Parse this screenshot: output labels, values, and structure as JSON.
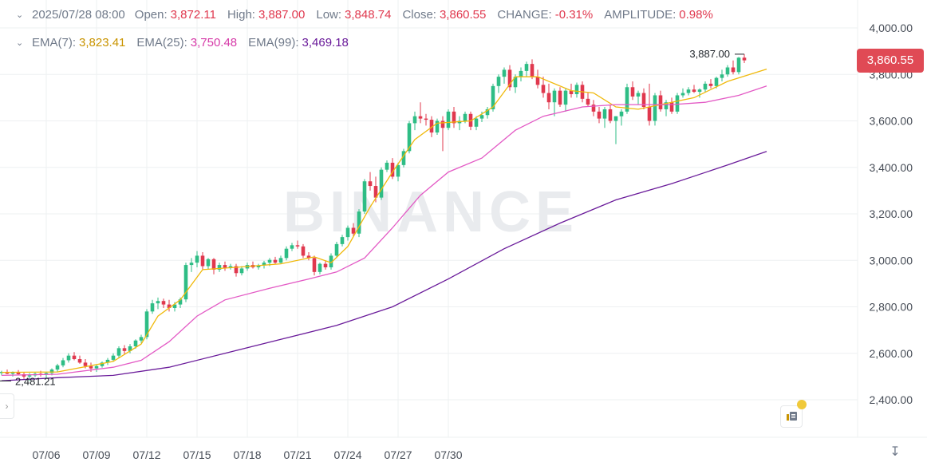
{
  "header": {
    "date": "2025/07/28 08:00",
    "open_label": "Open:",
    "open": "3,872.11",
    "high_label": "High:",
    "high": "3,887.00",
    "low_label": "Low:",
    "low": "3,848.74",
    "close_label": "Close:",
    "close": "3,860.55",
    "change_label": "CHANGE:",
    "change": "-0.31%",
    "amplitude_label": "AMPLITUDE:",
    "amplitude": "0.98%"
  },
  "ema": {
    "ema7_label": "EMA(7):",
    "ema7": "3,823.41",
    "ema25_label": "EMA(25):",
    "ema25": "3,750.48",
    "ema99_label": "EMA(99):",
    "ema99": "3,469.18"
  },
  "current_price": "3,860.55",
  "watermark": "BINANCE",
  "colors": {
    "up": "#2ebd85",
    "down": "#e0384e",
    "ema7": "#f0b90b",
    "ema25": "#e35ac5",
    "ema99": "#6a1b9a",
    "grid": "#eef0f2"
  },
  "chart_data": {
    "type": "candlestick",
    "ylim": [
      2300,
      4060
    ],
    "ytick_labels": [
      "4,000.00",
      "3,800.00",
      "3,600.00",
      "3,400.00",
      "3,200.00",
      "3,000.00",
      "2,800.00",
      "2,600.00",
      "2,400.00"
    ],
    "yticks": [
      4000,
      3800,
      3600,
      3400,
      3200,
      3000,
      2800,
      2600,
      2400
    ],
    "x_labels": [
      "07/06",
      "07/09",
      "07/12",
      "07/15",
      "07/18",
      "07/21",
      "07/24",
      "07/27",
      "07/30"
    ],
    "candle_interval_hours": 8,
    "x_first_label_candle_index": 8,
    "high_marker": {
      "label": "3,887.00",
      "value": 3887
    },
    "low_marker": {
      "label": "2,481.21",
      "value": 2481.21
    },
    "candles": [
      [
        2515,
        2525,
        2505,
        2520
      ],
      [
        2520,
        2530,
        2510,
        2512
      ],
      [
        2512,
        2522,
        2500,
        2518
      ],
      [
        2518,
        2528,
        2508,
        2510
      ],
      [
        2510,
        2520,
        2490,
        2500
      ],
      [
        2500,
        2515,
        2481,
        2505
      ],
      [
        2505,
        2520,
        2498,
        2512
      ],
      [
        2512,
        2525,
        2500,
        2508
      ],
      [
        2508,
        2520,
        2495,
        2515
      ],
      [
        2515,
        2535,
        2505,
        2530
      ],
      [
        2530,
        2555,
        2520,
        2548
      ],
      [
        2548,
        2580,
        2540,
        2570
      ],
      [
        2570,
        2600,
        2560,
        2590
      ],
      [
        2590,
        2605,
        2570,
        2575
      ],
      [
        2575,
        2590,
        2555,
        2560
      ],
      [
        2560,
        2575,
        2535,
        2545
      ],
      [
        2545,
        2560,
        2520,
        2535
      ],
      [
        2535,
        2550,
        2520,
        2545
      ],
      [
        2545,
        2565,
        2538,
        2560
      ],
      [
        2560,
        2580,
        2550,
        2572
      ],
      [
        2572,
        2600,
        2565,
        2590
      ],
      [
        2590,
        2630,
        2580,
        2622
      ],
      [
        2622,
        2635,
        2595,
        2610
      ],
      [
        2610,
        2640,
        2600,
        2630
      ],
      [
        2630,
        2660,
        2620,
        2655
      ],
      [
        2655,
        2680,
        2645,
        2670
      ],
      [
        2670,
        2790,
        2660,
        2780
      ],
      [
        2780,
        2830,
        2770,
        2815
      ],
      [
        2815,
        2840,
        2790,
        2825
      ],
      [
        2825,
        2835,
        2795,
        2810
      ],
      [
        2810,
        2830,
        2780,
        2795
      ],
      [
        2795,
        2820,
        2780,
        2810
      ],
      [
        2810,
        2840,
        2795,
        2832
      ],
      [
        2832,
        2990,
        2820,
        2980
      ],
      [
        2980,
        3010,
        2950,
        2990
      ],
      [
        2990,
        3040,
        2970,
        3020
      ],
      [
        3020,
        3035,
        2960,
        2975
      ],
      [
        2975,
        3010,
        2960,
        3005
      ],
      [
        3005,
        3010,
        2940,
        2960
      ],
      [
        2960,
        2990,
        2950,
        2980
      ],
      [
        2980,
        2995,
        2955,
        2968
      ],
      [
        2968,
        2985,
        2960,
        2975
      ],
      [
        2975,
        2985,
        2930,
        2945
      ],
      [
        2945,
        2975,
        2935,
        2965
      ],
      [
        2965,
        2990,
        2955,
        2980
      ],
      [
        2980,
        2995,
        2965,
        2970
      ],
      [
        2970,
        2985,
        2960,
        2978
      ],
      [
        2978,
        2998,
        2965,
        2990
      ],
      [
        2990,
        3010,
        2975,
        3002
      ],
      [
        3002,
        3015,
        2985,
        2990
      ],
      [
        2990,
        3020,
        2985,
        3010
      ],
      [
        3010,
        3060,
        3000,
        3050
      ],
      [
        3050,
        3075,
        3040,
        3065
      ],
      [
        3065,
        3085,
        3050,
        3060
      ],
      [
        3060,
        3070,
        3010,
        3020
      ],
      [
        3020,
        3035,
        3000,
        3010
      ],
      [
        3010,
        3020,
        2935,
        2950
      ],
      [
        2950,
        2990,
        2940,
        2985
      ],
      [
        2985,
        3000,
        2960,
        2970
      ],
      [
        2970,
        3030,
        2960,
        3020
      ],
      [
        3020,
        3080,
        3010,
        3070
      ],
      [
        3070,
        3110,
        3060,
        3100
      ],
      [
        3100,
        3150,
        3085,
        3140
      ],
      [
        3140,
        3160,
        3100,
        3115
      ],
      [
        3115,
        3220,
        3100,
        3210
      ],
      [
        3210,
        3350,
        3200,
        3340
      ],
      [
        3340,
        3380,
        3300,
        3320
      ],
      [
        3320,
        3360,
        3250,
        3270
      ],
      [
        3270,
        3400,
        3260,
        3390
      ],
      [
        3390,
        3430,
        3380,
        3420
      ],
      [
        3420,
        3440,
        3350,
        3360
      ],
      [
        3360,
        3420,
        3340,
        3410
      ],
      [
        3410,
        3480,
        3400,
        3470
      ],
      [
        3470,
        3600,
        3460,
        3590
      ],
      [
        3590,
        3640,
        3560,
        3620
      ],
      [
        3620,
        3680,
        3590,
        3610
      ],
      [
        3610,
        3630,
        3580,
        3605
      ],
      [
        3605,
        3620,
        3530,
        3550
      ],
      [
        3550,
        3610,
        3540,
        3600
      ],
      [
        3600,
        3620,
        3470,
        3570
      ],
      [
        3570,
        3650,
        3560,
        3640
      ],
      [
        3640,
        3660,
        3570,
        3590
      ],
      [
        3590,
        3620,
        3560,
        3600
      ],
      [
        3600,
        3640,
        3590,
        3630
      ],
      [
        3630,
        3640,
        3560,
        3575
      ],
      [
        3575,
        3620,
        3560,
        3610
      ],
      [
        3610,
        3640,
        3595,
        3625
      ],
      [
        3625,
        3660,
        3610,
        3650
      ],
      [
        3650,
        3760,
        3640,
        3750
      ],
      [
        3750,
        3800,
        3720,
        3790
      ],
      [
        3790,
        3830,
        3760,
        3820
      ],
      [
        3820,
        3840,
        3730,
        3745
      ],
      [
        3745,
        3800,
        3720,
        3790
      ],
      [
        3790,
        3830,
        3770,
        3815
      ],
      [
        3815,
        3855,
        3790,
        3845
      ],
      [
        3845,
        3865,
        3780,
        3790
      ],
      [
        3790,
        3820,
        3740,
        3755
      ],
      [
        3755,
        3790,
        3700,
        3720
      ],
      [
        3720,
        3760,
        3650,
        3680
      ],
      [
        3680,
        3740,
        3620,
        3730
      ],
      [
        3730,
        3745,
        3660,
        3670
      ],
      [
        3670,
        3740,
        3640,
        3730
      ],
      [
        3730,
        3760,
        3700,
        3715
      ],
      [
        3715,
        3765,
        3700,
        3755
      ],
      [
        3755,
        3770,
        3680,
        3695
      ],
      [
        3695,
        3720,
        3660,
        3670
      ],
      [
        3670,
        3690,
        3620,
        3640
      ],
      [
        3640,
        3660,
        3590,
        3610
      ],
      [
        3610,
        3660,
        3570,
        3650
      ],
      [
        3650,
        3670,
        3590,
        3600
      ],
      [
        3600,
        3620,
        3500,
        3620
      ],
      [
        3620,
        3650,
        3580,
        3640
      ],
      [
        3640,
        3760,
        3630,
        3745
      ],
      [
        3745,
        3770,
        3690,
        3705
      ],
      [
        3705,
        3730,
        3670,
        3720
      ],
      [
        3720,
        3740,
        3650,
        3660
      ],
      [
        3660,
        3760,
        3580,
        3600
      ],
      [
        3600,
        3720,
        3580,
        3710
      ],
      [
        3710,
        3730,
        3640,
        3650
      ],
      [
        3650,
        3690,
        3620,
        3680
      ],
      [
        3680,
        3700,
        3630,
        3640
      ],
      [
        3640,
        3720,
        3630,
        3710
      ],
      [
        3710,
        3740,
        3700,
        3720
      ],
      [
        3720,
        3745,
        3710,
        3735
      ],
      [
        3735,
        3755,
        3720,
        3725
      ],
      [
        3725,
        3740,
        3700,
        3735
      ],
      [
        3735,
        3770,
        3725,
        3760
      ],
      [
        3760,
        3780,
        3740,
        3750
      ],
      [
        3750,
        3790,
        3740,
        3785
      ],
      [
        3785,
        3820,
        3770,
        3800
      ],
      [
        3800,
        3840,
        3790,
        3830
      ],
      [
        3830,
        3860,
        3800,
        3810
      ],
      [
        3810,
        3875,
        3800,
        3872
      ],
      [
        3872,
        3887,
        3848.74,
        3860.55
      ]
    ],
    "ema_series": [
      {
        "name": "EMA(7)",
        "color": "#f0b90b",
        "points": [
          [
            0,
            2518
          ],
          [
            10,
            2520
          ],
          [
            20,
            2565
          ],
          [
            25,
            2640
          ],
          [
            28,
            2760
          ],
          [
            32,
            2830
          ],
          [
            36,
            2960
          ],
          [
            42,
            2970
          ],
          [
            50,
            2985
          ],
          [
            56,
            3015
          ],
          [
            59,
            2990
          ],
          [
            62,
            3060
          ],
          [
            66,
            3230
          ],
          [
            70,
            3380
          ],
          [
            74,
            3520
          ],
          [
            78,
            3590
          ],
          [
            84,
            3600
          ],
          [
            88,
            3660
          ],
          [
            92,
            3790
          ],
          [
            96,
            3790
          ],
          [
            102,
            3730
          ],
          [
            106,
            3720
          ],
          [
            110,
            3660
          ],
          [
            114,
            3650
          ],
          [
            118,
            3670
          ],
          [
            124,
            3700
          ],
          [
            130,
            3770
          ],
          [
            137,
            3823
          ]
        ]
      },
      {
        "name": "EMA(25)",
        "color": "#e35ac5",
        "points": [
          [
            0,
            2505
          ],
          [
            10,
            2510
          ],
          [
            20,
            2540
          ],
          [
            25,
            2570
          ],
          [
            30,
            2650
          ],
          [
            35,
            2760
          ],
          [
            40,
            2830
          ],
          [
            48,
            2880
          ],
          [
            55,
            2920
          ],
          [
            60,
            2950
          ],
          [
            65,
            3010
          ],
          [
            70,
            3140
          ],
          [
            75,
            3280
          ],
          [
            80,
            3380
          ],
          [
            86,
            3440
          ],
          [
            92,
            3560
          ],
          [
            97,
            3620
          ],
          [
            104,
            3660
          ],
          [
            110,
            3670
          ],
          [
            115,
            3670
          ],
          [
            120,
            3670
          ],
          [
            126,
            3680
          ],
          [
            132,
            3710
          ],
          [
            137,
            3750
          ]
        ]
      },
      {
        "name": "EMA(99)",
        "color": "#6a1b9a",
        "points": [
          [
            0,
            2482
          ],
          [
            10,
            2495
          ],
          [
            20,
            2505
          ],
          [
            30,
            2540
          ],
          [
            40,
            2600
          ],
          [
            50,
            2660
          ],
          [
            60,
            2720
          ],
          [
            70,
            2800
          ],
          [
            80,
            2920
          ],
          [
            90,
            3050
          ],
          [
            100,
            3160
          ],
          [
            110,
            3260
          ],
          [
            120,
            3330
          ],
          [
            130,
            3410
          ],
          [
            137,
            3469
          ]
        ]
      }
    ]
  }
}
